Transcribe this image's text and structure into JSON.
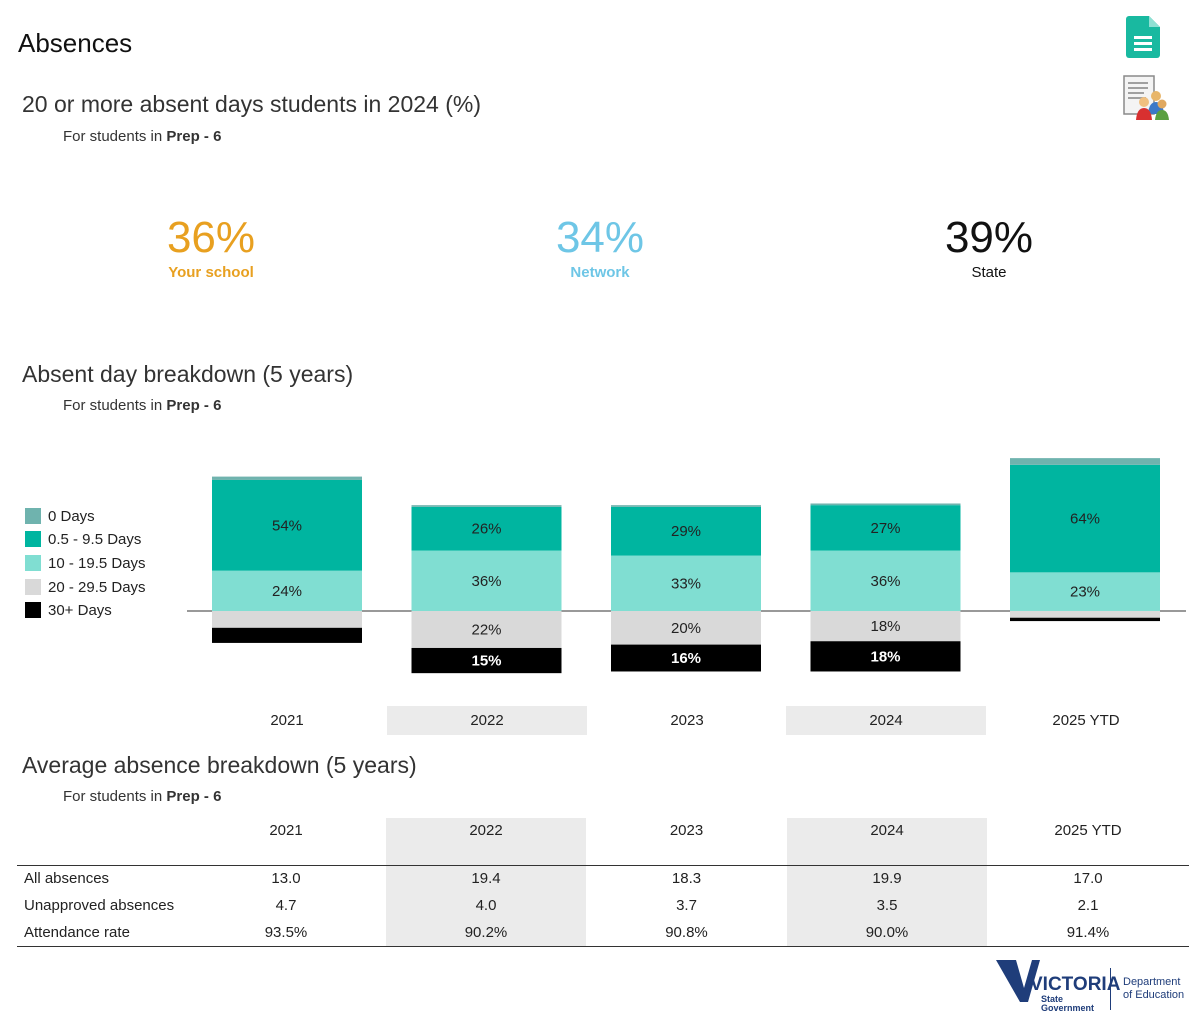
{
  "page_title": "Absences",
  "section1": {
    "title": "20 or more absent days students in 2024 (%)",
    "sub_prefix": "For students in ",
    "sub_bold": "Prep - 6",
    "kpis": [
      {
        "value": "36%",
        "label": "Your school",
        "color": "#e8a020"
      },
      {
        "value": "34%",
        "label": "Network",
        "color": "#6ec6e6"
      },
      {
        "value": "39%",
        "label": "State",
        "color": "#111111"
      }
    ]
  },
  "section2": {
    "title": "Absent day breakdown (5 years)",
    "sub_prefix": "For students in ",
    "sub_bold": "Prep - 6"
  },
  "section3": {
    "title": "Average absence breakdown (5 years)",
    "sub_prefix": "For students in ",
    "sub_bold": "Prep - 6"
  },
  "chart_data": {
    "type": "bar",
    "stacked": "diverging",
    "categories": [
      "2021",
      "2022",
      "2023",
      "2024",
      "2025 YTD"
    ],
    "series": [
      {
        "name": "0 Days",
        "color": "#6fb3ae",
        "values": [
          2,
          1,
          1,
          1,
          4
        ],
        "labels": [
          "",
          "",
          "",
          "",
          ""
        ]
      },
      {
        "name": "0.5 - 9.5 Days",
        "color": "#00b5a0",
        "values": [
          54,
          26,
          29,
          27,
          64
        ],
        "labels": [
          "54%",
          "26%",
          "29%",
          "27%",
          "64%"
        ]
      },
      {
        "name": "10 - 19.5 Days",
        "color": "#80ded2",
        "values": [
          24,
          36,
          33,
          36,
          23
        ],
        "labels": [
          "24%",
          "36%",
          "33%",
          "36%",
          "23%"
        ]
      },
      {
        "name": "20 - 29.5 Days",
        "color": "#d9d9d9",
        "values": [
          10,
          22,
          20,
          18,
          4
        ],
        "labels": [
          "",
          "22%",
          "20%",
          "18%",
          ""
        ]
      },
      {
        "name": "30+ Days",
        "color": "#000000",
        "values": [
          9,
          15,
          16,
          18,
          2
        ],
        "labels": [
          "",
          "15%",
          "16%",
          "18%",
          ""
        ]
      }
    ]
  },
  "table": {
    "columns": [
      "2021",
      "2022",
      "2023",
      "2024",
      "2025 YTD"
    ],
    "rows": [
      {
        "label": "All absences",
        "values": [
          "13.0",
          "19.4",
          "18.3",
          "19.9",
          "17.0"
        ]
      },
      {
        "label": "Unapproved absences",
        "values": [
          "4.7",
          "4.0",
          "3.7",
          "3.5",
          "2.1"
        ]
      },
      {
        "label": "Attendance rate",
        "values": [
          "93.5%",
          "90.2%",
          "90.8%",
          "90.0%",
          "91.4%"
        ]
      }
    ]
  },
  "footer": {
    "logo_text": "VICTORIA",
    "logo_sub1": "State",
    "logo_sub2": "Government",
    "dept1": "Department",
    "dept2": "of Education"
  },
  "icons": {
    "document": "document-icon",
    "report": "report-people-icon"
  }
}
